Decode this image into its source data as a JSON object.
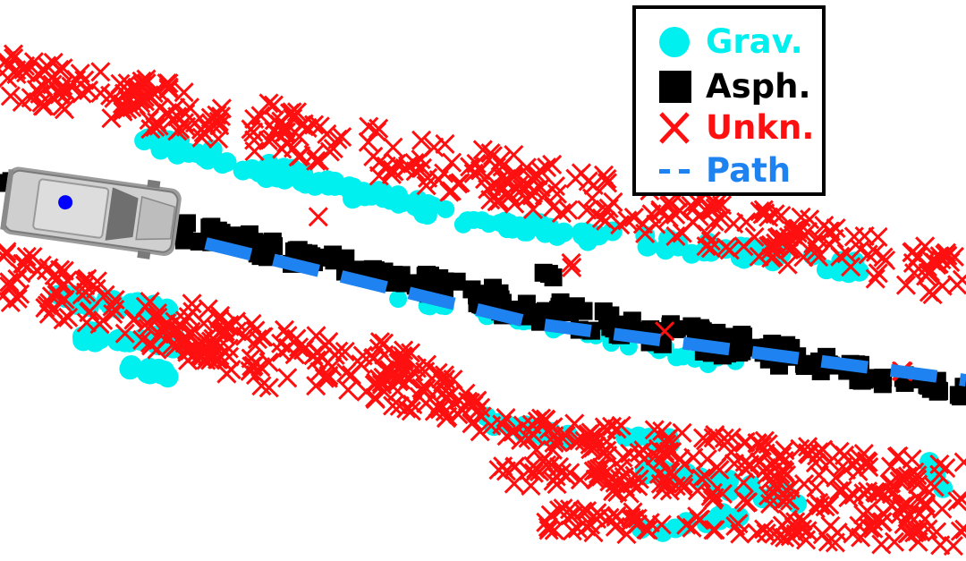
{
  "legend": {
    "items": [
      {
        "label": "Grav.",
        "symbol": "circle",
        "color": "#00f0f0"
      },
      {
        "label": "Asph.",
        "symbol": "square",
        "color": "#000000"
      },
      {
        "label": "Unkn.",
        "symbol": "cross",
        "color": "#ff1010"
      },
      {
        "label": "Path",
        "symbol": "dashed-line",
        "color": "#1e82f0"
      }
    ]
  },
  "vehicle": {
    "icon": "car-top-view-icon",
    "marker_color": "#0000ff"
  }
}
